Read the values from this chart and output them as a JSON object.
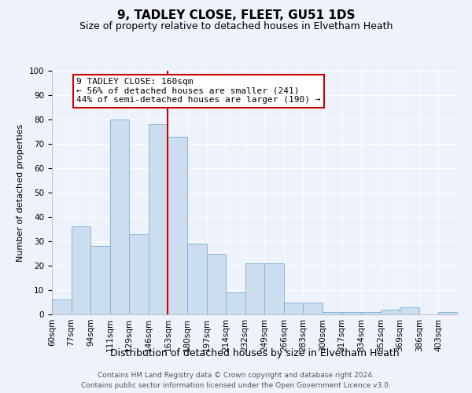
{
  "title": "9, TADLEY CLOSE, FLEET, GU51 1DS",
  "subtitle": "Size of property relative to detached houses in Elvetham Heath",
  "xlabel": "Distribution of detached houses by size in Elvetham Heath",
  "ylabel": "Number of detached properties",
  "bar_labels": [
    "60sqm",
    "77sqm",
    "94sqm",
    "111sqm",
    "129sqm",
    "146sqm",
    "163sqm",
    "180sqm",
    "197sqm",
    "214sqm",
    "232sqm",
    "249sqm",
    "266sqm",
    "283sqm",
    "300sqm",
    "317sqm",
    "334sqm",
    "352sqm",
    "369sqm",
    "386sqm",
    "403sqm"
  ],
  "bar_values": [
    6,
    36,
    28,
    80,
    33,
    78,
    73,
    29,
    25,
    9,
    21,
    21,
    5,
    5,
    1,
    1,
    1,
    2,
    3,
    0,
    1
  ],
  "bar_color": "#ccddf0",
  "bar_edge_color": "#7aafd4",
  "vline_x_index": 6,
  "vline_color": "#cc0000",
  "ylim": [
    0,
    100
  ],
  "annotation_title": "9 TADLEY CLOSE: 160sqm",
  "annotation_line1": "← 56% of detached houses are smaller (241)",
  "annotation_line2": "44% of semi-detached houses are larger (190) →",
  "annotation_box_color": "#ffffff",
  "annotation_box_edge": "#cc0000",
  "footer_line1": "Contains HM Land Registry data © Crown copyright and database right 2024.",
  "footer_line2": "Contains public sector information licensed under the Open Government Licence v3.0.",
  "title_fontsize": 11,
  "subtitle_fontsize": 9,
  "xlabel_fontsize": 9,
  "ylabel_fontsize": 8,
  "tick_fontsize": 7.5,
  "footer_fontsize": 6.5,
  "background_color": "#eef2fb"
}
